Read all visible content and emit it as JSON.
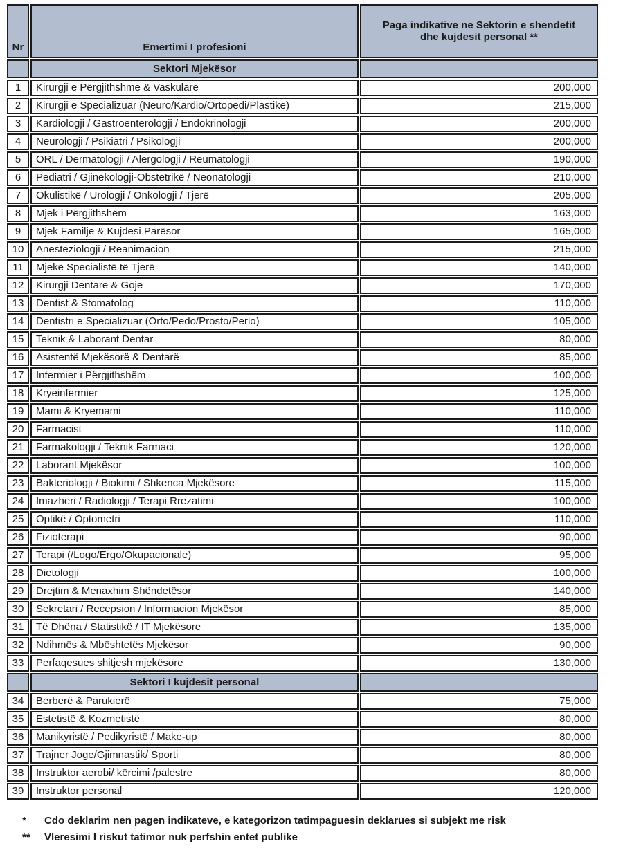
{
  "colors": {
    "header_bg": "#b2bdd0",
    "border": "#1c1c1c",
    "row_bg": "#ffffff"
  },
  "table": {
    "columns": {
      "nr": "Nr",
      "profession": "Emertimi I profesioni",
      "salary": "Paga indikative ne Sektorin e shendetit dhe kujdesit personal **"
    },
    "sections": [
      {
        "title": "Sektori Mjekësor",
        "rows": [
          {
            "nr": "1",
            "profession": "Kirurgji e Përgjithshme & Vaskulare",
            "salary": "200,000"
          },
          {
            "nr": "2",
            "profession": "Kirurgji e Specializuar (Neuro/Kardio/Ortopedi/Plastike)",
            "salary": "215,000"
          },
          {
            "nr": "3",
            "profession": "Kardiologji / Gastroenterologji / Endokrinologji",
            "salary": "200,000"
          },
          {
            "nr": "4",
            "profession": "Neurologji / Psikiatri / Psikologji",
            "salary": "200,000"
          },
          {
            "nr": "5",
            "profession": "ORL / Dermatologji / Alergologji / Reumatologji",
            "salary": "190,000"
          },
          {
            "nr": "6",
            "profession": "Pediatri / Gjinekologji-Obstetrikë / Neonatologji",
            "salary": "210,000"
          },
          {
            "nr": "7",
            "profession": "Okulistikë / Urologji / Onkologji / Tjerë",
            "salary": "205,000"
          },
          {
            "nr": "8",
            "profession": "Mjek i Përgjithshëm",
            "salary": "163,000"
          },
          {
            "nr": "9",
            "profession": "Mjek Familje & Kujdesi Parësor",
            "salary": "165,000"
          },
          {
            "nr": "10",
            "profession": "Anesteziologji / Reanimacion",
            "salary": "215,000"
          },
          {
            "nr": "11",
            "profession": "Mjekë Specialistë të Tjerë",
            "salary": "140,000"
          },
          {
            "nr": "12",
            "profession": "Kirurgji Dentare & Goje",
            "salary": "170,000"
          },
          {
            "nr": "13",
            "profession": "Dentist & Stomatolog",
            "salary": "110,000"
          },
          {
            "nr": "14",
            "profession": "Dentistri e Specializuar (Orto/Pedo/Prosto/Perio)",
            "salary": "105,000"
          },
          {
            "nr": "15",
            "profession": "Teknik & Laborant Dentar",
            "salary": "80,000"
          },
          {
            "nr": "16",
            "profession": "Asistentë Mjekësorë & Dentarë",
            "salary": "85,000"
          },
          {
            "nr": "17",
            "profession": "Infermier i Përgjithshëm",
            "salary": "100,000"
          },
          {
            "nr": "18",
            "profession": "Kryeinfermier",
            "salary": "125,000"
          },
          {
            "nr": "19",
            "profession": "Mami & Kryemami",
            "salary": "110,000"
          },
          {
            "nr": "20",
            "profession": "Farmacist",
            "salary": "110,000"
          },
          {
            "nr": "21",
            "profession": "Farmakologji / Teknik Farmaci",
            "salary": "120,000"
          },
          {
            "nr": "22",
            "profession": "Laborant Mjekësor",
            "salary": "100,000"
          },
          {
            "nr": "23",
            "profession": "Bakteriologji / Biokimi / Shkenca Mjekësore",
            "salary": "115,000"
          },
          {
            "nr": "24",
            "profession": "Imazheri / Radiologji / Terapi Rrezatimi",
            "salary": "100,000"
          },
          {
            "nr": "25",
            "profession": "Optikë / Optometri",
            "salary": "110,000"
          },
          {
            "nr": "26",
            "profession": "Fizioterapi",
            "salary": "90,000"
          },
          {
            "nr": "27",
            "profession": "Terapi (/Logo/Ergo/Okupacionale)",
            "salary": "95,000"
          },
          {
            "nr": "28",
            "profession": "Dietologji",
            "salary": "100,000"
          },
          {
            "nr": "29",
            "profession": "Drejtim & Menaxhim Shëndetësor",
            "salary": "140,000"
          },
          {
            "nr": "30",
            "profession": "Sekretari / Recepsion / Informacion Mjekësor",
            "salary": "85,000"
          },
          {
            "nr": "31",
            "profession": "Të Dhëna / Statistikë / IT Mjekësore",
            "salary": "135,000"
          },
          {
            "nr": "32",
            "profession": "Ndihmës & Mbështetës Mjekësor",
            "salary": "90,000"
          },
          {
            "nr": "33",
            "profession": "Perfaqesues shitjesh mjekësore",
            "salary": "130,000"
          }
        ]
      },
      {
        "title": "Sektori I kujdesit personal",
        "rows": [
          {
            "nr": "34",
            "profession": "Berberë & Parukierë",
            "salary": "75,000"
          },
          {
            "nr": "35",
            "profession": "Estetistë & Kozmetistë",
            "salary": "80,000"
          },
          {
            "nr": "36",
            "profession": "Manikyristë / Pedikyristë / Make-up",
            "salary": "80,000"
          },
          {
            "nr": "37",
            "profession": "Trajner Joge/Gjimnastik/ Sporti",
            "salary": "80,000"
          },
          {
            "nr": "38",
            "profession": "Instruktor aerobi/ kërcimi /palestre",
            "salary": "80,000"
          },
          {
            "nr": "39",
            "profession": "Instruktor personal",
            "salary": "120,000"
          }
        ]
      }
    ]
  },
  "footnotes": [
    {
      "marker": "*",
      "text": "Cdo deklarim nen pagen indikateve, e kategorizon tatimpaguesin deklarues si subjekt me risk"
    },
    {
      "marker": "**",
      "text": "Vleresimi I riskut tatimor nuk perfshin entet publike"
    }
  ]
}
